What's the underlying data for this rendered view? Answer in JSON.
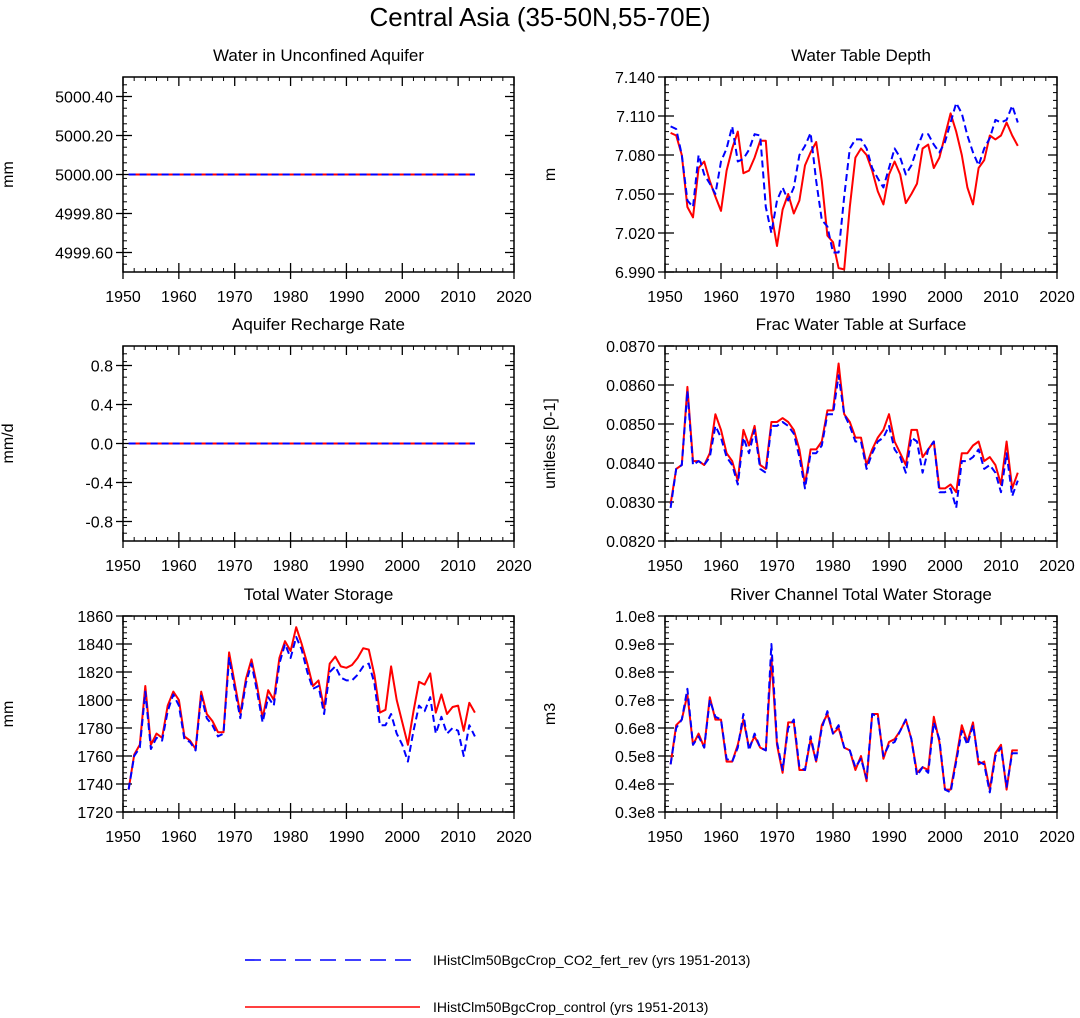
{
  "figure": {
    "title": "Central Asia (35-50N,55-70E)"
  },
  "legend": {
    "entries": [
      {
        "label": "IHistClm50BgcCrop_CO2_fert_rev (yrs 1951-2013)",
        "color": "#0000ff",
        "dash": "dashed"
      },
      {
        "label": "IHistClm50BgcCrop_control (yrs 1951-2013)",
        "color": "#ff0000",
        "dash": "solid"
      }
    ]
  },
  "chart_data": [
    {
      "type": "line",
      "title": "Water in Unconfined Aquifer",
      "xlabel": "",
      "ylabel": "mm",
      "xlim": [
        1950,
        2020
      ],
      "ylim": [
        4999.5,
        5000.5
      ],
      "xticks": [
        1950,
        1960,
        1970,
        1980,
        1990,
        2000,
        2010,
        2020
      ],
      "yticks": [
        4999.6,
        4999.8,
        5000.0,
        5000.2,
        5000.4
      ],
      "ytick_labels": [
        "4999.60",
        "4999.80",
        "5000.00",
        "5000.20",
        "5000.40"
      ],
      "x": [
        1951,
        2013
      ],
      "series": [
        {
          "name": "IHistClm50BgcCrop_CO2_fert_rev",
          "color": "#0000ff",
          "dash": "dashed",
          "values": [
            5000.0,
            5000.0
          ]
        },
        {
          "name": "IHistClm50BgcCrop_control",
          "color": "#ff0000",
          "dash": "solid",
          "values": [
            5000.0,
            5000.0
          ]
        }
      ]
    },
    {
      "type": "line",
      "title": "Water Table Depth",
      "xlabel": "",
      "ylabel": "m",
      "xlim": [
        1950,
        2020
      ],
      "ylim": [
        6.99,
        7.14
      ],
      "xticks": [
        1950,
        1960,
        1970,
        1980,
        1990,
        2000,
        2010,
        2020
      ],
      "yticks": [
        6.99,
        7.02,
        7.05,
        7.08,
        7.11,
        7.14
      ],
      "ytick_labels": [
        "6.990",
        "7.020",
        "7.050",
        "7.080",
        "7.110",
        "7.140"
      ],
      "x_start": 1951,
      "series": [
        {
          "name": "IHistClm50BgcCrop_CO2_fert_rev",
          "color": "#0000ff",
          "dash": "dashed",
          "values": [
            7.102,
            7.1,
            7.08,
            7.045,
            7.04,
            7.08,
            7.065,
            7.058,
            7.05,
            7.075,
            7.085,
            7.102,
            7.075,
            7.077,
            7.084,
            7.096,
            7.095,
            7.04,
            7.02,
            7.045,
            7.055,
            7.045,
            7.055,
            7.08,
            7.087,
            7.097,
            7.06,
            7.03,
            7.025,
            7.005,
            7.005,
            7.048,
            7.085,
            7.092,
            7.092,
            7.085,
            7.07,
            7.062,
            7.055,
            7.07,
            7.085,
            7.078,
            7.065,
            7.072,
            7.085,
            7.096,
            7.096,
            7.088,
            7.082,
            7.09,
            7.105,
            7.12,
            7.112,
            7.095,
            7.082,
            7.072,
            7.085,
            7.093,
            7.107,
            7.105,
            7.107,
            7.118,
            7.105
          ]
        },
        {
          "name": "IHistClm50BgcCrop_control",
          "color": "#ff0000",
          "dash": "solid",
          "values": [
            7.097,
            7.095,
            7.08,
            7.04,
            7.032,
            7.07,
            7.075,
            7.06,
            7.048,
            7.037,
            7.068,
            7.085,
            7.098,
            7.066,
            7.068,
            7.078,
            7.091,
            7.091,
            7.035,
            7.01,
            7.038,
            7.05,
            7.035,
            7.045,
            7.072,
            7.082,
            7.09,
            7.06,
            7.018,
            7.013,
            6.993,
            6.992,
            7.04,
            7.078,
            7.085,
            7.08,
            7.068,
            7.052,
            7.042,
            7.065,
            7.075,
            7.065,
            7.043,
            7.05,
            7.058,
            7.085,
            7.088,
            7.07,
            7.078,
            7.095,
            7.112,
            7.098,
            7.08,
            7.055,
            7.042,
            7.07,
            7.076,
            7.095,
            7.092,
            7.095,
            7.105,
            7.095,
            7.087
          ]
        }
      ]
    },
    {
      "type": "line",
      "title": "Aquifer Recharge Rate",
      "xlabel": "",
      "ylabel": "mm/d",
      "xlim": [
        1950,
        2020
      ],
      "ylim": [
        -1.0,
        1.0
      ],
      "xticks": [
        1950,
        1960,
        1970,
        1980,
        1990,
        2000,
        2010,
        2020
      ],
      "yticks": [
        -0.8,
        -0.4,
        0.0,
        0.4,
        0.8
      ],
      "ytick_labels": [
        "-0.8",
        "-0.4",
        "0.0",
        "0.4",
        "0.8"
      ],
      "x": [
        1951,
        2013
      ],
      "series": [
        {
          "name": "IHistClm50BgcCrop_CO2_fert_rev",
          "color": "#0000ff",
          "dash": "dashed",
          "values": [
            0.0,
            0.0
          ]
        },
        {
          "name": "IHistClm50BgcCrop_control",
          "color": "#ff0000",
          "dash": "solid",
          "values": [
            0.0,
            0.0
          ]
        }
      ]
    },
    {
      "type": "line",
      "title": "Frac Water Table at Surface",
      "xlabel": "",
      "ylabel": "unitless [0-1]",
      "xlim": [
        1950,
        2020
      ],
      "ylim": [
        0.082,
        0.087
      ],
      "xticks": [
        1950,
        1960,
        1970,
        1980,
        1990,
        2000,
        2010,
        2020
      ],
      "yticks": [
        0.082,
        0.083,
        0.084,
        0.085,
        0.086,
        0.087
      ],
      "ytick_labels": [
        "0.0820",
        "0.0830",
        "0.0840",
        "0.0850",
        "0.0860",
        "0.0870"
      ],
      "x_start": 1951,
      "series": [
        {
          "name": "IHistClm50BgcCrop_CO2_fert_rev",
          "color": "#0000ff",
          "dash": "dashed",
          "values": [
            0.08285,
            0.08385,
            0.08395,
            0.08585,
            0.08395,
            0.08405,
            0.08395,
            0.08415,
            0.08495,
            0.08465,
            0.08415,
            0.08395,
            0.08345,
            0.08465,
            0.08425,
            0.08485,
            0.08385,
            0.08375,
            0.08495,
            0.08495,
            0.08505,
            0.08495,
            0.08475,
            0.08415,
            0.08335,
            0.08425,
            0.08425,
            0.08445,
            0.08525,
            0.08525,
            0.08625,
            0.08525,
            0.08495,
            0.08455,
            0.08455,
            0.08385,
            0.08425,
            0.08455,
            0.08465,
            0.08495,
            0.08435,
            0.08415,
            0.08375,
            0.08465,
            0.08455,
            0.08375,
            0.08435,
            0.08455,
            0.08325,
            0.08325,
            0.08335,
            0.08285,
            0.08405,
            0.08405,
            0.08415,
            0.08435,
            0.08385,
            0.08395,
            0.08375,
            0.08325,
            0.08425,
            0.08315,
            0.08355
          ]
        },
        {
          "name": "IHistClm50BgcCrop_control",
          "color": "#ff0000",
          "dash": "solid",
          "values": [
            0.08295,
            0.08385,
            0.08395,
            0.08595,
            0.08405,
            0.08405,
            0.08395,
            0.08425,
            0.08525,
            0.08485,
            0.08425,
            0.08405,
            0.08355,
            0.08485,
            0.08445,
            0.08495,
            0.08395,
            0.08385,
            0.08505,
            0.08505,
            0.08515,
            0.08505,
            0.08485,
            0.08435,
            0.08345,
            0.08435,
            0.08435,
            0.08455,
            0.08535,
            0.08535,
            0.08655,
            0.08525,
            0.08505,
            0.08465,
            0.08465,
            0.08395,
            0.08435,
            0.08465,
            0.08485,
            0.08525,
            0.08455,
            0.08425,
            0.08395,
            0.08485,
            0.08485,
            0.08415,
            0.08435,
            0.08455,
            0.08335,
            0.08335,
            0.08345,
            0.08325,
            0.08425,
            0.08425,
            0.08445,
            0.08455,
            0.08405,
            0.08415,
            0.08395,
            0.08345,
            0.08455,
            0.08335,
            0.08375
          ]
        }
      ]
    },
    {
      "type": "line",
      "title": "Total Water Storage",
      "xlabel": "",
      "ylabel": "mm",
      "xlim": [
        1950,
        2020
      ],
      "ylim": [
        1720,
        1860
      ],
      "xticks": [
        1950,
        1960,
        1970,
        1980,
        1990,
        2000,
        2010,
        2020
      ],
      "yticks": [
        1720,
        1740,
        1760,
        1780,
        1800,
        1820,
        1840,
        1860
      ],
      "ytick_labels": [
        "1720",
        "1740",
        "1760",
        "1780",
        "1800",
        "1820",
        "1840",
        "1860"
      ],
      "x_start": 1951,
      "series": [
        {
          "name": "IHistClm50BgcCrop_CO2_fert_rev",
          "color": "#0000ff",
          "dash": "dashed",
          "values": [
            1736,
            1760,
            1766,
            1806,
            1765,
            1773,
            1771,
            1792,
            1804,
            1796,
            1772,
            1770,
            1764,
            1803,
            1787,
            1782,
            1774,
            1776,
            1830,
            1808,
            1787,
            1812,
            1826,
            1806,
            1784,
            1802,
            1796,
            1826,
            1840,
            1830,
            1845,
            1836,
            1820,
            1808,
            1810,
            1790,
            1820,
            1824,
            1816,
            1814,
            1814,
            1818,
            1824,
            1826,
            1812,
            1782,
            1782,
            1790,
            1776,
            1768,
            1756,
            1778,
            1796,
            1792,
            1802,
            1776,
            1788,
            1776,
            1780,
            1778,
            1760,
            1782,
            1774
          ]
        },
        {
          "name": "IHistClm50BgcCrop_control",
          "color": "#ff0000",
          "dash": "solid",
          "values": [
            1736,
            1761,
            1768,
            1810,
            1768,
            1776,
            1773,
            1796,
            1806,
            1800,
            1774,
            1771,
            1765,
            1806,
            1790,
            1785,
            1777,
            1777,
            1834,
            1812,
            1790,
            1815,
            1829,
            1810,
            1787,
            1807,
            1800,
            1830,
            1842,
            1835,
            1852,
            1840,
            1826,
            1810,
            1814,
            1794,
            1826,
            1831,
            1824,
            1823,
            1825,
            1830,
            1837,
            1836,
            1818,
            1791,
            1793,
            1824,
            1800,
            1784,
            1768,
            1792,
            1813,
            1811,
            1819,
            1791,
            1804,
            1790,
            1795,
            1796,
            1778,
            1798,
            1791
          ]
        }
      ]
    },
    {
      "type": "line",
      "title": "River Channel Total Water Storage",
      "xlabel": "",
      "ylabel": "m3",
      "xlim": [
        1950,
        2020
      ],
      "ylim": [
        0.3,
        1.0
      ],
      "xticks": [
        1950,
        1960,
        1970,
        1980,
        1990,
        2000,
        2010,
        2020
      ],
      "yticks": [
        0.3,
        0.4,
        0.5,
        0.6,
        0.7,
        0.8,
        0.9,
        1.0
      ],
      "ytick_labels": [
        "0.3e8",
        "0.4e8",
        "0.5e8",
        "0.6e8",
        "0.7e8",
        "0.8e8",
        "0.9e8",
        "1.0e8"
      ],
      "y_unit_multiplier": 100000000,
      "x_start": 1951,
      "series": [
        {
          "name": "IHistClm50BgcCrop_CO2_fert_rev",
          "color": "#0000ff",
          "dash": "dashed",
          "values": [
            0.47,
            0.6,
            0.63,
            0.74,
            0.54,
            0.57,
            0.53,
            0.7,
            0.64,
            0.63,
            0.49,
            0.48,
            0.53,
            0.65,
            0.52,
            0.58,
            0.53,
            0.52,
            0.9,
            0.55,
            0.45,
            0.6,
            0.63,
            0.46,
            0.45,
            0.57,
            0.48,
            0.6,
            0.66,
            0.58,
            0.61,
            0.53,
            0.52,
            0.46,
            0.49,
            0.42,
            0.65,
            0.64,
            0.5,
            0.54,
            0.55,
            0.59,
            0.63,
            0.56,
            0.43,
            0.46,
            0.44,
            0.62,
            0.56,
            0.38,
            0.37,
            0.48,
            0.59,
            0.54,
            0.61,
            0.48,
            0.47,
            0.37,
            0.5,
            0.53,
            0.39,
            0.51,
            0.51
          ]
        },
        {
          "name": "IHistClm50BgcCrop_control",
          "color": "#ff0000",
          "dash": "solid",
          "values": [
            0.47,
            0.61,
            0.63,
            0.72,
            0.54,
            0.58,
            0.53,
            0.71,
            0.63,
            0.63,
            0.48,
            0.48,
            0.54,
            0.63,
            0.53,
            0.57,
            0.53,
            0.52,
            0.85,
            0.54,
            0.44,
            0.62,
            0.62,
            0.45,
            0.45,
            0.56,
            0.48,
            0.61,
            0.65,
            0.58,
            0.6,
            0.53,
            0.52,
            0.45,
            0.5,
            0.41,
            0.65,
            0.65,
            0.49,
            0.55,
            0.56,
            0.59,
            0.63,
            0.56,
            0.44,
            0.46,
            0.45,
            0.64,
            0.55,
            0.38,
            0.38,
            0.49,
            0.61,
            0.55,
            0.62,
            0.47,
            0.48,
            0.38,
            0.51,
            0.54,
            0.38,
            0.52,
            0.52
          ]
        }
      ]
    }
  ]
}
